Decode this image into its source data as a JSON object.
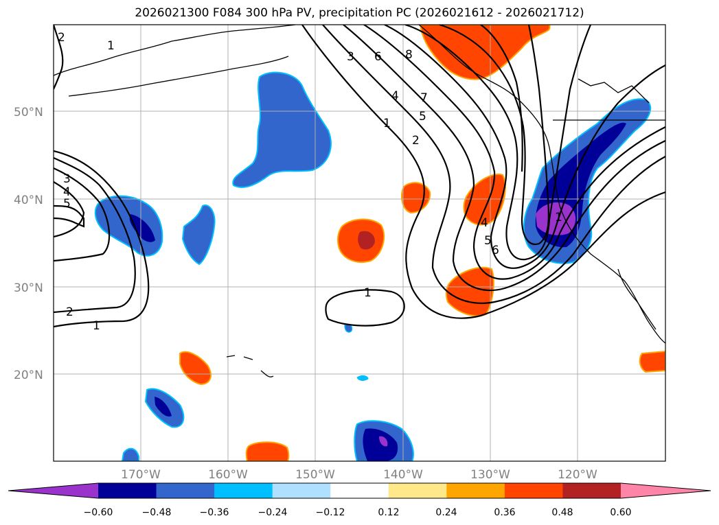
{
  "title": "2026021300 F084 300 hPa PV, precipitation PC (2026021612 - 2026021712)",
  "lat_labels": [
    "50°N",
    "40°N",
    "30°N",
    "20°N"
  ],
  "lon_labels": [
    "170°W",
    "160°W",
    "150°W",
    "140°W",
    "130°W",
    "120°W"
  ],
  "colorbar": {
    "colors": [
      "#9933cc",
      "#000099",
      "#3366cc",
      "#00bfff",
      "#b0e0ff",
      "#ffffff",
      "#ffe88a",
      "#ffa500",
      "#ff4500",
      "#b22222",
      "#ff85a8"
    ],
    "ticks": [
      "−0.60",
      "−0.48",
      "−0.36",
      "−0.24",
      "−0.12",
      "0.12",
      "0.24",
      "0.36",
      "0.48",
      "0.60"
    ]
  },
  "contour_labels": [
    "2",
    "1",
    "3",
    "4",
    "5",
    "2",
    "1",
    "3",
    "6",
    "8",
    "4",
    "7",
    "1",
    "2",
    "5",
    "4",
    "5",
    "6",
    "1",
    "1"
  ]
}
